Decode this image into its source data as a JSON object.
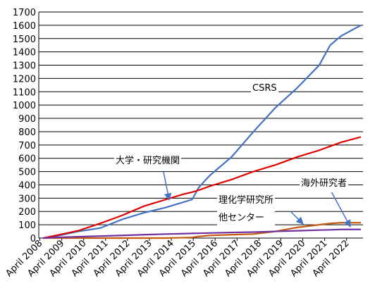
{
  "chart_data": {
    "type": "line",
    "x": [
      2008.4,
      2009.0,
      2010.0,
      2011.0,
      2012.0,
      2013.0,
      2014.0,
      2014.8,
      2015.2,
      2015.5,
      2016.0,
      2017.0,
      2018.0,
      2019.0,
      2020.0,
      2021.0,
      2021.5,
      2022.0,
      2022.9
    ],
    "series": [
      {
        "name": "CSRS",
        "color": "#4472c4",
        "values": [
          0,
          15,
          50,
          75,
          140,
          190,
          230,
          270,
          290,
          380,
          470,
          610,
          800,
          980,
          1130,
          1300,
          1450,
          1520,
          1600
        ]
      },
      {
        "name": "大学・研究機関",
        "color": "#e00000",
        "values": [
          0,
          20,
          55,
          110,
          170,
          240,
          290,
          330,
          345,
          360,
          390,
          440,
          500,
          550,
          610,
          660,
          690,
          720,
          760
        ]
      },
      {
        "name": "理化学研究所\n他センター",
        "color": "#c55a11",
        "values": [
          0,
          0,
          0,
          0,
          0,
          0,
          0,
          3,
          5,
          12,
          20,
          25,
          30,
          50,
          80,
          100,
          110,
          115,
          115
        ]
      },
      {
        "name": "海外研究者",
        "color": "#7030a0",
        "values": [
          0,
          5,
          10,
          15,
          20,
          25,
          30,
          33,
          35,
          36,
          38,
          42,
          45,
          50,
          55,
          60,
          62,
          65,
          65
        ]
      }
    ],
    "xlim": [
      2008.2,
      2023.0
    ],
    "xticks": [
      {
        "value": 2008.25,
        "label": "April 2008"
      },
      {
        "value": 2009.25,
        "label": "April 2009"
      },
      {
        "value": 2010.25,
        "label": "April 2010"
      },
      {
        "value": 2011.25,
        "label": "April 2011"
      },
      {
        "value": 2012.25,
        "label": "April 2012"
      },
      {
        "value": 2013.25,
        "label": "April 2013"
      },
      {
        "value": 2014.25,
        "label": "April 2014"
      },
      {
        "value": 2015.25,
        "label": "April 2015"
      },
      {
        "value": 2016.25,
        "label": "April 2016"
      },
      {
        "value": 2017.25,
        "label": "April 2017"
      },
      {
        "value": 2018.25,
        "label": "April 2018"
      },
      {
        "value": 2019.25,
        "label": "April 2019"
      },
      {
        "value": 2020.25,
        "label": "April 2020"
      },
      {
        "value": 2021.25,
        "label": "April 2021"
      },
      {
        "value": 2022.25,
        "label": "April 2022"
      }
    ],
    "ylim": [
      0,
      1700
    ],
    "yticks": [
      0,
      100,
      200,
      300,
      400,
      500,
      600,
      700,
      800,
      900,
      1000,
      1100,
      1200,
      1300,
      1400,
      1500,
      1600,
      1700
    ],
    "grid": true
  }
}
